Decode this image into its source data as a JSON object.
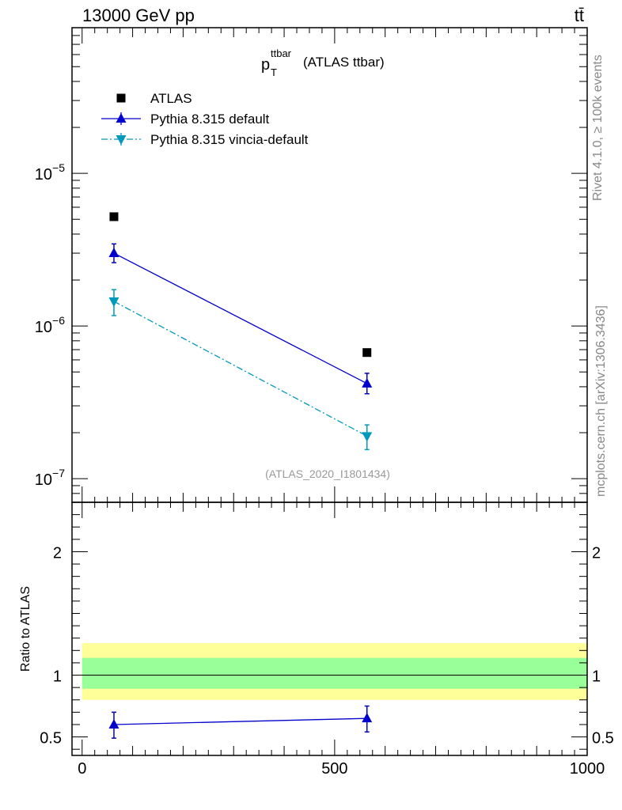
{
  "header": {
    "energy_label": "13000 GeV pp",
    "process_label": "tt̄"
  },
  "chart_data": [
    {
      "type": "line",
      "panel": "main",
      "title": "p",
      "title_sup": "ttbar",
      "title_sub": "T",
      "title_suffix": "(ATLAS ttbar)",
      "analysis_label": "(ATLAS_2020_I1801434)",
      "yscale": "log",
      "ylim": [
        7e-08,
        9e-05
      ],
      "xlim": [
        -20,
        1000
      ],
      "yticks": [
        {
          "value": 1e-07,
          "base": "10",
          "exp": "−7"
        },
        {
          "value": 1e-06,
          "base": "10",
          "exp": "−6"
        },
        {
          "value": 1e-05,
          "base": "10",
          "exp": "−5"
        }
      ],
      "legend_position": "top-left",
      "series": [
        {
          "name": "ATLAS",
          "marker": "square",
          "color": "#000000",
          "x": [
            63,
            564
          ],
          "y": [
            5.2e-06,
            6.7e-07
          ],
          "yerr_low": [
            0,
            0
          ],
          "yerr_high": [
            0,
            0
          ]
        },
        {
          "name": "Pythia 8.315 default",
          "marker": "triangle-up",
          "color": "#0000cc",
          "line": "solid",
          "x": [
            63,
            564
          ],
          "y": [
            3e-06,
            4.2e-07
          ],
          "yerr_low": [
            4e-07,
            6e-08
          ],
          "yerr_high": [
            4.5e-07,
            7e-08
          ]
        },
        {
          "name": "Pythia 8.315 vincia-default",
          "marker": "triangle-down",
          "color": "#0099bb",
          "line": "dashdot",
          "x": [
            63,
            564
          ],
          "y": [
            1.45e-06,
            1.9e-07
          ],
          "yerr_low": [
            2.8e-07,
            3.5e-08
          ],
          "yerr_high": [
            2.8e-07,
            3.5e-08
          ]
        }
      ]
    },
    {
      "type": "line",
      "panel": "ratio",
      "ylabel": "Ratio to ATLAS",
      "xlim": [
        -20,
        1000
      ],
      "ylim": [
        0.35,
        2.4
      ],
      "yticks": [
        "0.5",
        "1",
        "2"
      ],
      "ytick_values": [
        0.5,
        1,
        2
      ],
      "xticks": [
        "0",
        "500",
        "1000"
      ],
      "xtick_values": [
        0,
        500,
        1000
      ],
      "bands": [
        {
          "name": "outer uncertainty",
          "low": 0.8,
          "high": 1.26,
          "color": "#ffff99"
        },
        {
          "name": "inner uncertainty",
          "low": 0.89,
          "high": 1.14,
          "color": "#99ff99"
        }
      ],
      "reference_line": 1,
      "series": [
        {
          "name": "Pythia 8.315 default",
          "color": "#0000cc",
          "marker": "triangle-up",
          "x": [
            63,
            564
          ],
          "y": [
            0.6,
            0.65
          ],
          "yerr_low": [
            0.11,
            0.11
          ],
          "yerr_high": [
            0.1,
            0.1
          ]
        }
      ]
    }
  ],
  "side_labels": {
    "rivet": "Rivet 4.1.0, ≥ 100k events",
    "mcplots": "mcplots.cern.ch [arXiv:1306.3436]"
  }
}
